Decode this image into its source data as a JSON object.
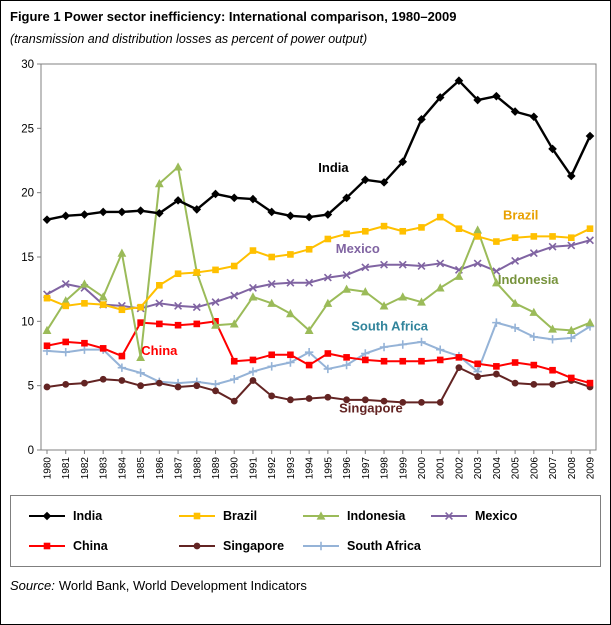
{
  "chart_data": {
    "type": "line",
    "title": "Figure 1 Power sector inefficiency: International comparison, 1980–2009",
    "subtitle": "(transmission and distribution losses as percent of power output)",
    "xlabel": "",
    "ylabel": "",
    "ylim": [
      0,
      30
    ],
    "yticks": [
      0,
      5,
      10,
      15,
      20,
      25,
      30
    ],
    "grid": false,
    "legend_position": "bottom",
    "x": [
      "1980",
      "1981",
      "1982",
      "1983",
      "1984",
      "1985",
      "1986",
      "1987",
      "1988",
      "1989",
      "1990",
      "1991",
      "1992",
      "1993",
      "1994",
      "1995",
      "1996",
      "1997",
      "1998",
      "1999",
      "2000",
      "2001",
      "2002",
      "2003",
      "2004",
      "2005",
      "2006",
      "2007",
      "2008",
      "2009"
    ],
    "series": [
      {
        "name": "India",
        "color": "#000000",
        "marker": "diamond",
        "line_width": 2.4,
        "values": [
          17.9,
          18.2,
          18.3,
          18.5,
          18.5,
          18.6,
          18.4,
          19.4,
          18.7,
          19.9,
          19.6,
          19.5,
          18.5,
          18.2,
          18.1,
          18.3,
          19.6,
          21.0,
          20.8,
          22.4,
          25.7,
          27.4,
          28.7,
          27.2,
          27.5,
          26.3,
          25.9,
          23.4,
          21.3,
          24.4
        ]
      },
      {
        "name": "Brazil",
        "color": "#FFC000",
        "marker": "square",
        "line_width": 2,
        "values": [
          11.8,
          11.2,
          11.4,
          11.3,
          10.9,
          11.1,
          12.8,
          13.7,
          13.8,
          14.0,
          14.3,
          15.5,
          15.0,
          15.2,
          15.6,
          16.4,
          16.8,
          17.0,
          17.4,
          17.0,
          17.3,
          18.1,
          17.2,
          16.6,
          16.2,
          16.5,
          16.6,
          16.6,
          16.5,
          17.2
        ]
      },
      {
        "name": "Indonesia",
        "color": "#9BBB59",
        "marker": "triangle",
        "line_width": 2,
        "values": [
          9.3,
          11.6,
          12.9,
          11.9,
          15.3,
          7.2,
          20.7,
          22.0,
          13.8,
          9.7,
          9.8,
          11.9,
          11.4,
          10.6,
          9.3,
          11.4,
          12.5,
          12.3,
          11.2,
          11.9,
          11.5,
          12.6,
          13.5,
          17.1,
          13.0,
          11.4,
          10.7,
          9.4,
          9.3,
          9.9
        ]
      },
      {
        "name": "Mexico",
        "color": "#8064A2",
        "marker": "x",
        "line_width": 2,
        "values": [
          12.1,
          12.9,
          12.6,
          11.3,
          11.2,
          11.0,
          11.4,
          11.2,
          11.1,
          11.5,
          12.0,
          12.6,
          12.9,
          13.0,
          13.0,
          13.4,
          13.6,
          14.2,
          14.4,
          14.4,
          14.3,
          14.5,
          14.0,
          14.5,
          13.9,
          14.7,
          15.3,
          15.8,
          15.9,
          16.3
        ]
      },
      {
        "name": "China",
        "color": "#FF0000",
        "marker": "square",
        "line_width": 2,
        "values": [
          8.1,
          8.4,
          8.3,
          7.9,
          7.3,
          9.9,
          9.8,
          9.7,
          9.8,
          10.0,
          6.9,
          7.0,
          7.4,
          7.4,
          6.6,
          7.5,
          7.2,
          7.0,
          6.9,
          6.9,
          6.9,
          7.0,
          7.2,
          6.7,
          6.5,
          6.8,
          6.6,
          6.2,
          5.6,
          5.2
        ]
      },
      {
        "name": "Singapore",
        "color": "#632423",
        "marker": "circle",
        "line_width": 2,
        "values": [
          4.9,
          5.1,
          5.2,
          5.5,
          5.4,
          5.0,
          5.2,
          4.9,
          5.0,
          4.6,
          3.8,
          5.4,
          4.2,
          3.9,
          4.0,
          4.1,
          3.9,
          3.9,
          3.8,
          3.7,
          3.7,
          3.7,
          6.4,
          5.7,
          5.9,
          5.2,
          5.1,
          5.1,
          5.4,
          4.9
        ]
      },
      {
        "name": "South Africa",
        "color": "#95B3D7",
        "marker": "plus",
        "line_width": 2,
        "values": [
          7.7,
          7.6,
          7.8,
          7.8,
          6.4,
          6.0,
          5.3,
          5.2,
          5.3,
          5.1,
          5.5,
          6.1,
          6.5,
          6.8,
          7.6,
          6.3,
          6.6,
          7.5,
          8.0,
          8.2,
          8.4,
          7.8,
          7.3,
          6.1,
          9.9,
          9.5,
          8.8,
          8.6,
          8.7,
          9.6
        ]
      }
    ],
    "annotations": [
      {
        "text": "India",
        "year": 1995.3,
        "value": 21.6,
        "color": "#000000"
      },
      {
        "text": "Brazil",
        "year": 2005.3,
        "value": 17.9,
        "color": "#E8A000"
      },
      {
        "text": "Mexico",
        "year": 1996.6,
        "value": 15.3,
        "color": "#8064A2"
      },
      {
        "text": "Indonesia",
        "year": 2005.7,
        "value": 12.9,
        "color": "#77933C"
      },
      {
        "text": "South Africa",
        "year": 1998.3,
        "value": 9.3,
        "color": "#31849B"
      },
      {
        "text": "China",
        "year": 1986.0,
        "value": 7.4,
        "color": "#FF0000"
      },
      {
        "text": "Singapore",
        "year": 1997.3,
        "value": 2.9,
        "color": "#632423"
      }
    ]
  },
  "figure": {
    "source_label": "Source:",
    "source_text": "World Bank, World Development Indicators"
  }
}
